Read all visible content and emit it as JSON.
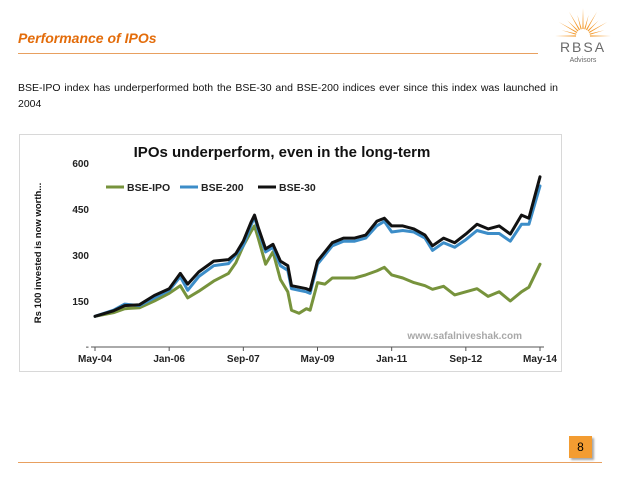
{
  "slide": {
    "title": "Performance of IPOs",
    "body": "BSE-IPO index has underperformed both the BSE-30 and BSE-200 indices ever since this index was launched in 2004",
    "page_number": "8"
  },
  "logo": {
    "name": "RBSA",
    "subtitle": "Advisors",
    "accent_color": "#f39c31"
  },
  "colors": {
    "bse_ipo": "#77933c",
    "bse_200": "#3c8dc8",
    "bse_30": "#111111",
    "title": "#e36c0a"
  },
  "chart_data": {
    "type": "line",
    "title": "IPOs underperform, even in the long-term",
    "ylabel": "Rs 100 invested is now worth...",
    "xlabel": "",
    "ylim": [
      0,
      600
    ],
    "yticks": [
      150,
      300,
      450,
      600
    ],
    "ytick_labels": [
      "150",
      "300",
      "450",
      "600"
    ],
    "xlim": [
      "2004-05",
      "2014-05"
    ],
    "xticks": [
      "2004-05",
      "2006-01",
      "2007-09",
      "2009-05",
      "2011-01",
      "2012-09",
      "2014-05"
    ],
    "xtick_labels": [
      "May-04",
      "Jan-06",
      "Sep-07",
      "May-09",
      "Jan-11",
      "Sep-12",
      "May-14"
    ],
    "legend_position": "top-left",
    "watermark": "www.safalniveshak.com",
    "series": [
      {
        "name": "BSE-IPO",
        "color": "#77933c",
        "points": [
          [
            "2004-05",
            100
          ],
          [
            "2004-10",
            112
          ],
          [
            "2005-01",
            125
          ],
          [
            "2005-05",
            128
          ],
          [
            "2005-09",
            150
          ],
          [
            "2006-01",
            175
          ],
          [
            "2006-04",
            200
          ],
          [
            "2006-06",
            160
          ],
          [
            "2006-09",
            182
          ],
          [
            "2007-01",
            215
          ],
          [
            "2007-05",
            240
          ],
          [
            "2007-07",
            275
          ],
          [
            "2007-09",
            330
          ],
          [
            "2007-11",
            375
          ],
          [
            "2007-12",
            395
          ],
          [
            "2008-01",
            355
          ],
          [
            "2008-03",
            270
          ],
          [
            "2008-05",
            310
          ],
          [
            "2008-07",
            220
          ],
          [
            "2008-09",
            180
          ],
          [
            "2008-10",
            120
          ],
          [
            "2008-12",
            110
          ],
          [
            "2009-02",
            125
          ],
          [
            "2009-03",
            120
          ],
          [
            "2009-05",
            210
          ],
          [
            "2009-07",
            205
          ],
          [
            "2009-09",
            225
          ],
          [
            "2009-12",
            225
          ],
          [
            "2010-03",
            225
          ],
          [
            "2010-06",
            235
          ],
          [
            "2010-09",
            248
          ],
          [
            "2010-11",
            260
          ],
          [
            "2011-01",
            235
          ],
          [
            "2011-04",
            225
          ],
          [
            "2011-07",
            210
          ],
          [
            "2011-10",
            200
          ],
          [
            "2011-12",
            188
          ],
          [
            "2012-03",
            198
          ],
          [
            "2012-06",
            170
          ],
          [
            "2012-09",
            180
          ],
          [
            "2012-12",
            190
          ],
          [
            "2013-03",
            165
          ],
          [
            "2013-06",
            180
          ],
          [
            "2013-09",
            150
          ],
          [
            "2013-12",
            180
          ],
          [
            "2014-02",
            195
          ],
          [
            "2014-05",
            270
          ]
        ]
      },
      {
        "name": "BSE-200",
        "color": "#3c8dc8",
        "points": [
          [
            "2004-05",
            100
          ],
          [
            "2004-10",
            120
          ],
          [
            "2005-01",
            140
          ],
          [
            "2005-05",
            135
          ],
          [
            "2005-09",
            160
          ],
          [
            "2006-01",
            185
          ],
          [
            "2006-04",
            230
          ],
          [
            "2006-06",
            185
          ],
          [
            "2006-09",
            230
          ],
          [
            "2007-01",
            265
          ],
          [
            "2007-05",
            272
          ],
          [
            "2007-07",
            300
          ],
          [
            "2007-09",
            330
          ],
          [
            "2007-11",
            395
          ],
          [
            "2007-12",
            425
          ],
          [
            "2008-01",
            380
          ],
          [
            "2008-03",
            310
          ],
          [
            "2008-05",
            325
          ],
          [
            "2008-07",
            265
          ],
          [
            "2008-09",
            250
          ],
          [
            "2008-10",
            190
          ],
          [
            "2008-12",
            185
          ],
          [
            "2009-02",
            180
          ],
          [
            "2009-03",
            175
          ],
          [
            "2009-05",
            270
          ],
          [
            "2009-07",
            300
          ],
          [
            "2009-09",
            330
          ],
          [
            "2009-12",
            345
          ],
          [
            "2010-03",
            345
          ],
          [
            "2010-06",
            355
          ],
          [
            "2010-09",
            395
          ],
          [
            "2010-11",
            410
          ],
          [
            "2011-01",
            375
          ],
          [
            "2011-04",
            380
          ],
          [
            "2011-07",
            375
          ],
          [
            "2011-10",
            355
          ],
          [
            "2011-12",
            315
          ],
          [
            "2012-03",
            340
          ],
          [
            "2012-06",
            325
          ],
          [
            "2012-09",
            350
          ],
          [
            "2012-12",
            380
          ],
          [
            "2013-03",
            370
          ],
          [
            "2013-06",
            370
          ],
          [
            "2013-09",
            345
          ],
          [
            "2013-12",
            400
          ],
          [
            "2014-02",
            400
          ],
          [
            "2014-05",
            525
          ]
        ]
      },
      {
        "name": "BSE-30",
        "color": "#111111",
        "points": [
          [
            "2004-05",
            100
          ],
          [
            "2004-10",
            118
          ],
          [
            "2005-01",
            135
          ],
          [
            "2005-05",
            138
          ],
          [
            "2005-09",
            168
          ],
          [
            "2006-01",
            190
          ],
          [
            "2006-04",
            240
          ],
          [
            "2006-06",
            205
          ],
          [
            "2006-09",
            245
          ],
          [
            "2007-01",
            280
          ],
          [
            "2007-05",
            285
          ],
          [
            "2007-07",
            305
          ],
          [
            "2007-09",
            345
          ],
          [
            "2007-11",
            405
          ],
          [
            "2007-12",
            430
          ],
          [
            "2008-01",
            390
          ],
          [
            "2008-03",
            320
          ],
          [
            "2008-05",
            335
          ],
          [
            "2008-07",
            280
          ],
          [
            "2008-09",
            265
          ],
          [
            "2008-10",
            200
          ],
          [
            "2008-12",
            195
          ],
          [
            "2009-02",
            190
          ],
          [
            "2009-03",
            185
          ],
          [
            "2009-05",
            280
          ],
          [
            "2009-07",
            310
          ],
          [
            "2009-09",
            340
          ],
          [
            "2009-12",
            355
          ],
          [
            "2010-03",
            355
          ],
          [
            "2010-06",
            365
          ],
          [
            "2010-09",
            410
          ],
          [
            "2010-11",
            420
          ],
          [
            "2011-01",
            395
          ],
          [
            "2011-04",
            395
          ],
          [
            "2011-07",
            385
          ],
          [
            "2011-10",
            365
          ],
          [
            "2011-12",
            330
          ],
          [
            "2012-03",
            355
          ],
          [
            "2012-06",
            340
          ],
          [
            "2012-09",
            368
          ],
          [
            "2012-12",
            400
          ],
          [
            "2013-03",
            385
          ],
          [
            "2013-06",
            395
          ],
          [
            "2013-09",
            368
          ],
          [
            "2013-12",
            430
          ],
          [
            "2014-02",
            420
          ],
          [
            "2014-05",
            555
          ]
        ]
      }
    ]
  }
}
